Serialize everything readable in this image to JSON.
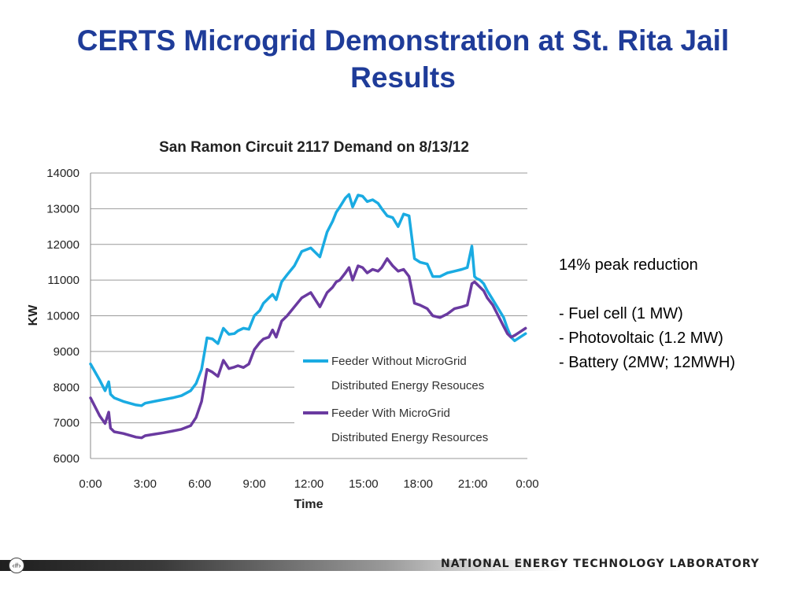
{
  "slide": {
    "title_line1": "CERTS Microgrid Demonstration at St. Rita Jail",
    "title_line2": "Results"
  },
  "notes": {
    "headline": "14% peak reduction",
    "items": [
      "- Fuel cell (1 MW)",
      "- Photovoltaic (1.2 MW)",
      "- Battery (2MW; 12MWH)"
    ]
  },
  "footer": {
    "page_marker": "‹#›",
    "lab_name": "NATIONAL ENERGY TECHNOLOGY LABORATORY"
  },
  "chart_data": {
    "type": "line",
    "title": "San Ramon Circuit 2117 Demand on 8/13/12",
    "xlabel": "Time",
    "ylabel": "KW",
    "xlim": [
      0,
      24
    ],
    "ylim": [
      6000,
      14000
    ],
    "x_ticks": [
      "0:00",
      "3:00",
      "6:00",
      "9:00",
      "12:00",
      "15:00",
      "18:00",
      "21:00",
      "0:00"
    ],
    "y_ticks": [
      6000,
      7000,
      8000,
      9000,
      10000,
      11000,
      12000,
      13000,
      14000
    ],
    "grid": "horizontal",
    "legend_position": "center-right",
    "series": [
      {
        "name": "Feeder Without MicroGrid Distributed Energy Resouces",
        "legend_lines": [
          "Feeder Without MicroGrid",
          "Distributed Energy Resouces"
        ],
        "color": "#1aabe2",
        "x": [
          0,
          0.5,
          0.8,
          1.0,
          1.1,
          1.3,
          1.8,
          2.5,
          2.8,
          3.0,
          3.5,
          4.0,
          4.5,
          5.0,
          5.5,
          5.8,
          6.1,
          6.4,
          6.7,
          7.0,
          7.3,
          7.6,
          7.9,
          8.1,
          8.4,
          8.7,
          9.0,
          9.3,
          9.5,
          9.8,
          10.0,
          10.2,
          10.5,
          10.8,
          11.2,
          11.6,
          12.1,
          12.6,
          13.0,
          13.3,
          13.5,
          13.7,
          14.0,
          14.2,
          14.4,
          14.7,
          14.95,
          15.2,
          15.5,
          15.8,
          16.0,
          16.3,
          16.6,
          16.9,
          17.2,
          17.5,
          17.8,
          18.1,
          18.5,
          18.8,
          19.2,
          19.6,
          20.0,
          20.4,
          20.7,
          20.95,
          21.1,
          21.2,
          21.4,
          21.6,
          21.8,
          22.1,
          22.4,
          22.7,
          22.9,
          23.1,
          23.3,
          23.6,
          23.9
        ],
        "values": [
          8650,
          8200,
          7900,
          8150,
          7800,
          7700,
          7600,
          7500,
          7480,
          7550,
          7600,
          7650,
          7700,
          7760,
          7900,
          8100,
          8500,
          9380,
          9350,
          9220,
          9650,
          9480,
          9500,
          9580,
          9650,
          9620,
          10000,
          10150,
          10350,
          10500,
          10600,
          10450,
          10950,
          11150,
          11400,
          11800,
          11900,
          11650,
          12350,
          12650,
          12900,
          13050,
          13300,
          13400,
          13050,
          13380,
          13350,
          13200,
          13250,
          13150,
          13000,
          12800,
          12750,
          12500,
          12850,
          12800,
          11600,
          11500,
          11450,
          11100,
          11100,
          11200,
          11250,
          11300,
          11350,
          11950,
          11100,
          11050,
          11000,
          10900,
          10700,
          10450,
          10200,
          9950,
          9650,
          9400,
          9300,
          9400,
          9500
        ]
      },
      {
        "name": "Feeder With MicroGrid Distributed Energy Resources",
        "legend_lines": [
          "Feeder With MicroGrid",
          "Distributed Energy Resources"
        ],
        "color": "#6a3aa0",
        "x": [
          0,
          0.5,
          0.8,
          1.0,
          1.1,
          1.3,
          1.8,
          2.5,
          2.8,
          3.0,
          3.5,
          4.0,
          4.5,
          5.0,
          5.5,
          5.8,
          6.1,
          6.4,
          6.7,
          7.0,
          7.3,
          7.6,
          7.9,
          8.1,
          8.4,
          8.7,
          9.0,
          9.3,
          9.5,
          9.8,
          10.0,
          10.2,
          10.5,
          10.8,
          11.2,
          11.6,
          12.1,
          12.6,
          13.0,
          13.3,
          13.5,
          13.7,
          14.0,
          14.2,
          14.4,
          14.7,
          14.95,
          15.2,
          15.5,
          15.8,
          16.0,
          16.3,
          16.6,
          16.9,
          17.2,
          17.5,
          17.8,
          18.1,
          18.5,
          18.8,
          19.2,
          19.6,
          20.0,
          20.4,
          20.7,
          20.95,
          21.1,
          21.2,
          21.4,
          21.6,
          21.8,
          22.1,
          22.4,
          22.7,
          22.9,
          23.1,
          23.3,
          23.6,
          23.9
        ],
        "values": [
          7700,
          7200,
          6980,
          7300,
          6850,
          6750,
          6700,
          6600,
          6580,
          6640,
          6680,
          6720,
          6770,
          6820,
          6920,
          7150,
          7600,
          8500,
          8420,
          8300,
          8750,
          8520,
          8560,
          8600,
          8550,
          8650,
          9050,
          9250,
          9350,
          9400,
          9600,
          9400,
          9850,
          10000,
          10250,
          10500,
          10650,
          10250,
          10650,
          10800,
          10950,
          11000,
          11200,
          11350,
          11000,
          11400,
          11350,
          11200,
          11300,
          11250,
          11350,
          11600,
          11400,
          11250,
          11300,
          11100,
          10350,
          10300,
          10200,
          10000,
          9950,
          10050,
          10200,
          10250,
          10300,
          10900,
          10950,
          10900,
          10800,
          10700,
          10500,
          10300,
          10000,
          9700,
          9500,
          9400,
          9450,
          9550,
          9650
        ]
      }
    ]
  }
}
